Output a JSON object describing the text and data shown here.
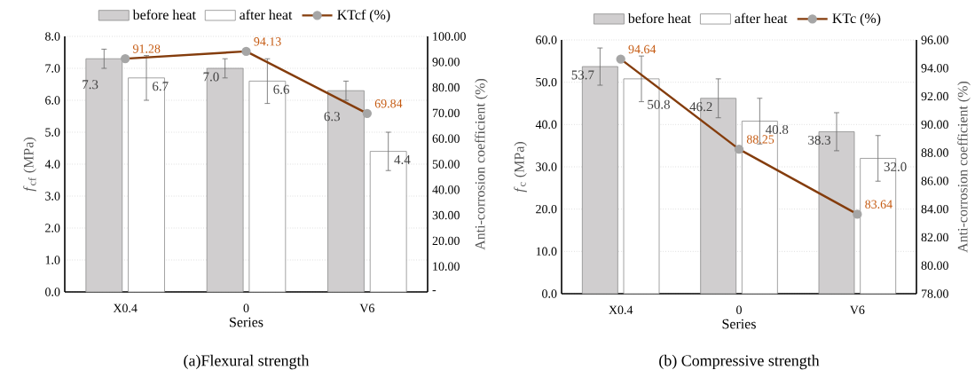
{
  "chart_data": [
    {
      "type": "bar",
      "title": "(a)Flexural strength",
      "categories": [
        "X0.4",
        "0",
        "V6"
      ],
      "xlabel": "Series",
      "ylabel": "*f*$_{cf}$ (MPa)",
      "y2label": "Anti-corrosion coefficient (%)",
      "ylim": [
        0,
        8
      ],
      "yticks": [
        {
          "value": 0,
          "label": "0.0"
        },
        {
          "value": 1,
          "label": "1.0"
        },
        {
          "value": 2,
          "label": "2.0"
        },
        {
          "value": 3,
          "label": "3.0"
        },
        {
          "value": 4,
          "label": "4.0"
        },
        {
          "value": 5,
          "label": "5.0"
        },
        {
          "value": 6,
          "label": "6.0"
        },
        {
          "value": 7,
          "label": "7.0"
        },
        {
          "value": 8,
          "label": "8.0"
        }
      ],
      "y2lim": [
        0,
        100
      ],
      "y2ticks": [
        {
          "value": 0,
          "label": "-"
        },
        {
          "value": 10,
          "label": "10.00"
        },
        {
          "value": 20,
          "label": "20.00"
        },
        {
          "value": 30,
          "label": "30.00"
        },
        {
          "value": 40,
          "label": "40.00"
        },
        {
          "value": 50,
          "label": "50.00"
        },
        {
          "value": 60,
          "label": "60.00"
        },
        {
          "value": 70,
          "label": "70.00"
        },
        {
          "value": 80,
          "label": "80.00"
        },
        {
          "value": 90,
          "label": "90.00"
        },
        {
          "value": 100,
          "label": "100.00"
        }
      ],
      "grid": "y",
      "legend": "top",
      "series": [
        {
          "name": "before heat",
          "color": "#d0cecf",
          "values": [
            7.3,
            7.0,
            6.3
          ],
          "errors": [
            0.3,
            0.3,
            0.3
          ],
          "value_labels": [
            "7.3",
            "7.0",
            "6.3"
          ]
        },
        {
          "name": "after heat",
          "color": "#ffffff",
          "values": [
            6.7,
            6.6,
            4.4
          ],
          "errors": [
            0.7,
            0.7,
            0.6
          ],
          "value_labels": [
            "6.7",
            "6.6",
            "4.4"
          ]
        },
        {
          "name": "KTcf (%)",
          "type": "line",
          "axis": "y2",
          "color": "#843c0c",
          "marker": "circle",
          "values": [
            91.28,
            94.13,
            69.84
          ],
          "value_labels": [
            "91.28",
            "94.13",
            "69.84"
          ]
        }
      ]
    },
    {
      "type": "bar",
      "title": "(b) Compressive strength",
      "categories": [
        "X0.4",
        "0",
        "V6"
      ],
      "xlabel": "Series",
      "ylabel": "*f*$_{c}$ (MPa)",
      "y2label": "Anti-corrosion coefficient (%)",
      "ylim": [
        0,
        60
      ],
      "yticks": [
        {
          "value": 0,
          "label": "0.0"
        },
        {
          "value": 10,
          "label": "10.0"
        },
        {
          "value": 20,
          "label": "20.0"
        },
        {
          "value": 30,
          "label": "30.0"
        },
        {
          "value": 40,
          "label": "40.0"
        },
        {
          "value": 50,
          "label": "50.0"
        },
        {
          "value": 60,
          "label": "60.0"
        }
      ],
      "y2lim": [
        78,
        96
      ],
      "y2ticks": [
        {
          "value": 78,
          "label": "78.00"
        },
        {
          "value": 80,
          "label": "80.00"
        },
        {
          "value": 82,
          "label": "82.00"
        },
        {
          "value": 84,
          "label": "84.00"
        },
        {
          "value": 86,
          "label": "86.00"
        },
        {
          "value": 88,
          "label": "88.00"
        },
        {
          "value": 90,
          "label": "90.00"
        },
        {
          "value": 92,
          "label": "92.00"
        },
        {
          "value": 94,
          "label": "94.00"
        },
        {
          "value": 96,
          "label": "96.00"
        }
      ],
      "grid": "y",
      "legend": "top",
      "series": [
        {
          "name": "before heat",
          "color": "#d0cecf",
          "values": [
            53.7,
            46.2,
            38.3
          ],
          "errors": [
            4.4,
            4.6,
            4.5
          ],
          "value_labels": [
            "53.7",
            "46.2",
            "38.3"
          ]
        },
        {
          "name": "after heat",
          "color": "#ffffff",
          "values": [
            50.8,
            40.8,
            32.0
          ],
          "errors": [
            5.4,
            5.4,
            5.4
          ],
          "value_labels": [
            "50.8",
            "40.8",
            "32.0"
          ]
        },
        {
          "name": "KTc (%)",
          "type": "line",
          "axis": "y2",
          "color": "#843c0c",
          "marker": "circle",
          "values": [
            94.64,
            88.25,
            83.64
          ],
          "value_labels": [
            "94.64",
            "88.25",
            "83.64"
          ]
        }
      ]
    }
  ]
}
